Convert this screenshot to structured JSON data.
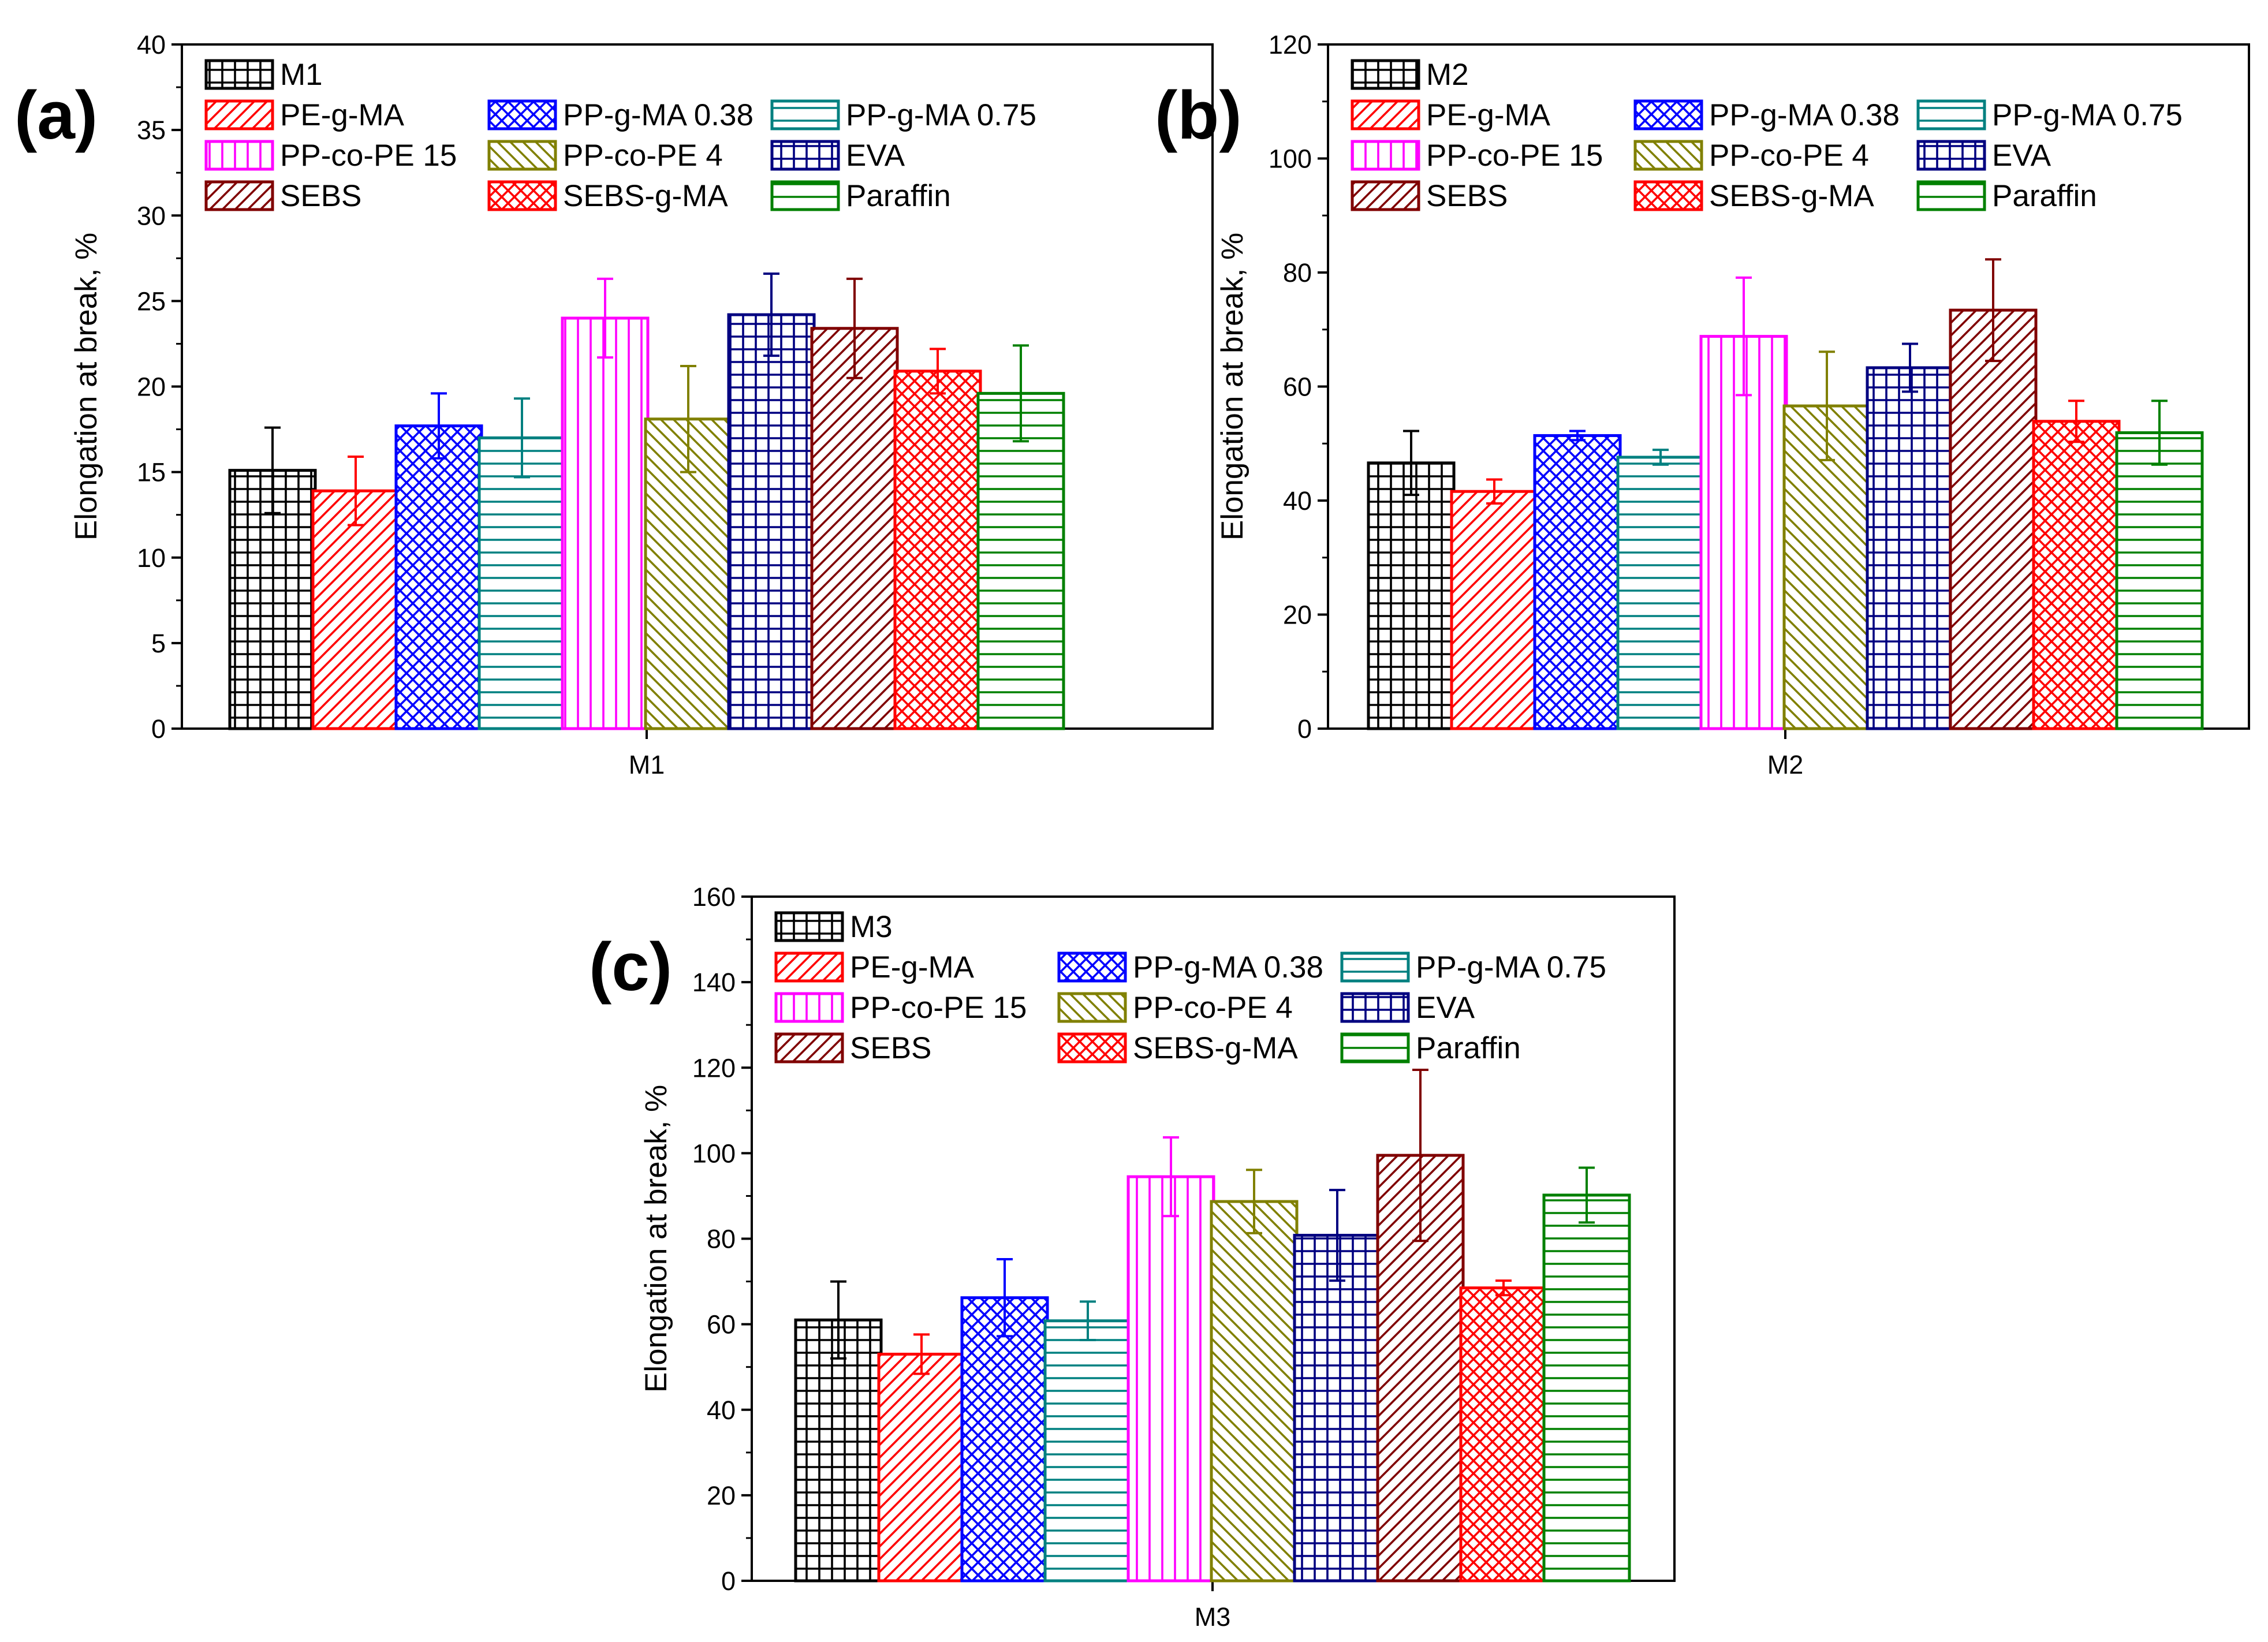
{
  "chart_data": [
    {
      "type": "bar",
      "panel_label": "(a)",
      "title": "",
      "xlabel": "",
      "ylabel": "Elongation at break, %",
      "categories": [
        "M1"
      ],
      "ylim": [
        0,
        40
      ],
      "yticks": [
        0,
        5,
        10,
        15,
        20,
        25,
        30,
        35,
        40
      ],
      "legend_position": "top-left",
      "series": [
        {
          "name": "M1",
          "values": [
            15.1
          ],
          "errors": [
            2.5
          ]
        },
        {
          "name": "PE-g-MA",
          "values": [
            13.9
          ],
          "errors": [
            2.0
          ]
        },
        {
          "name": "PP-g-MA 0.38",
          "values": [
            17.7
          ],
          "errors": [
            1.9
          ]
        },
        {
          "name": "PP-g-MA 0.75",
          "values": [
            17.0
          ],
          "errors": [
            2.3
          ]
        },
        {
          "name": "PP-co-PE 15",
          "values": [
            24.0
          ],
          "errors": [
            2.3
          ]
        },
        {
          "name": "PP-co-PE 4",
          "values": [
            18.1
          ],
          "errors": [
            3.1
          ]
        },
        {
          "name": "EVA",
          "values": [
            24.2
          ],
          "errors": [
            2.4
          ]
        },
        {
          "name": "SEBS",
          "values": [
            23.4
          ],
          "errors": [
            2.9
          ]
        },
        {
          "name": "SEBS-g-MA",
          "values": [
            20.9
          ],
          "errors": [
            1.3
          ]
        },
        {
          "name": "Paraffin",
          "values": [
            19.6
          ],
          "errors": [
            2.8
          ]
        }
      ]
    },
    {
      "type": "bar",
      "panel_label": "(b)",
      "title": "",
      "xlabel": "",
      "ylabel": "Elongation at break, %",
      "categories": [
        "M2"
      ],
      "ylim": [
        0,
        120
      ],
      "yticks": [
        0,
        20,
        40,
        60,
        80,
        100,
        120
      ],
      "legend_position": "top-left",
      "series": [
        {
          "name": "M2",
          "values": [
            46.6
          ],
          "errors": [
            5.6
          ]
        },
        {
          "name": "PE-g-MA",
          "values": [
            41.6
          ],
          "errors": [
            2.1
          ]
        },
        {
          "name": "PP-g-MA 0.38",
          "values": [
            51.4
          ],
          "errors": [
            0.8
          ]
        },
        {
          "name": "PP-g-MA 0.75",
          "values": [
            47.6
          ],
          "errors": [
            1.3
          ]
        },
        {
          "name": "PP-co-PE 15",
          "values": [
            68.8
          ],
          "errors": [
            10.3
          ]
        },
        {
          "name": "PP-co-PE 4",
          "values": [
            56.6
          ],
          "errors": [
            9.5
          ]
        },
        {
          "name": "EVA",
          "values": [
            63.3
          ],
          "errors": [
            4.2
          ]
        },
        {
          "name": "SEBS",
          "values": [
            73.4
          ],
          "errors": [
            8.9
          ]
        },
        {
          "name": "SEBS-g-MA",
          "values": [
            53.9
          ],
          "errors": [
            3.6
          ]
        },
        {
          "name": "Paraffin",
          "values": [
            51.9
          ],
          "errors": [
            5.6
          ]
        }
      ]
    },
    {
      "type": "bar",
      "panel_label": "(c)",
      "title": "",
      "xlabel": "",
      "ylabel": "Elongation at break, %",
      "categories": [
        "M3"
      ],
      "ylim": [
        0,
        160
      ],
      "yticks": [
        0,
        20,
        40,
        60,
        80,
        100,
        120,
        140,
        160
      ],
      "legend_position": "top-left",
      "series": [
        {
          "name": "M3",
          "values": [
            61.0
          ],
          "errors": [
            9.0
          ]
        },
        {
          "name": "PE-g-MA",
          "values": [
            53.0
          ],
          "errors": [
            4.6
          ]
        },
        {
          "name": "PP-g-MA 0.38",
          "values": [
            66.2
          ],
          "errors": [
            9.0
          ]
        },
        {
          "name": "PP-g-MA 0.75",
          "values": [
            60.8
          ],
          "errors": [
            4.5
          ]
        },
        {
          "name": "PP-co-PE 15",
          "values": [
            94.5
          ],
          "errors": [
            9.2
          ]
        },
        {
          "name": "PP-co-PE 4",
          "values": [
            88.7
          ],
          "errors": [
            7.4
          ]
        },
        {
          "name": "EVA",
          "values": [
            80.8
          ],
          "errors": [
            10.6
          ]
        },
        {
          "name": "SEBS",
          "values": [
            99.5
          ],
          "errors": [
            20.0
          ]
        },
        {
          "name": "SEBS-g-MA",
          "values": [
            68.5
          ],
          "errors": [
            1.7
          ]
        },
        {
          "name": "Paraffin",
          "values": [
            90.2
          ],
          "errors": [
            6.4
          ]
        }
      ]
    }
  ],
  "series_styles": [
    {
      "color": "#000000",
      "pattern": "grid"
    },
    {
      "color": "#ff0000",
      "pattern": "diag-right"
    },
    {
      "color": "#0000ff",
      "pattern": "crosshatch"
    },
    {
      "color": "#008080",
      "pattern": "horizontal"
    },
    {
      "color": "#ff00ff",
      "pattern": "vertical"
    },
    {
      "color": "#808000",
      "pattern": "diag-left"
    },
    {
      "color": "#000080",
      "pattern": "grid"
    },
    {
      "color": "#800000",
      "pattern": "diag-right"
    },
    {
      "color": "#ff0000",
      "pattern": "crosshatch"
    },
    {
      "color": "#008000",
      "pattern": "horizontal"
    }
  ]
}
